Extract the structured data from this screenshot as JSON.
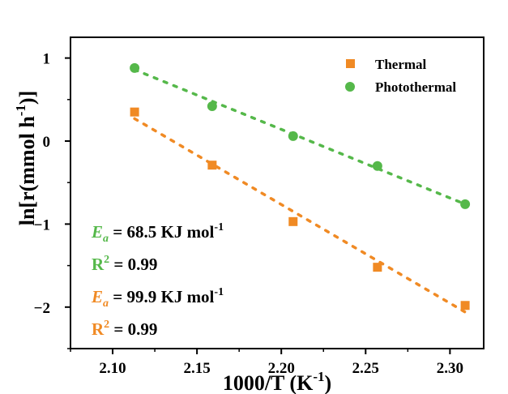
{
  "chart_data": {
    "type": "scatter",
    "xlabel": "1000/T (K",
    "xlabel_sup": "-1",
    "xlabel_close": ")",
    "ylabel": "ln[r(mmol h",
    "ylabel_sup": "-1",
    "ylabel_close": ")]",
    "xlim": [
      2.075,
      2.32
    ],
    "ylim": [
      -2.5,
      1.25
    ],
    "xticks": [
      2.1,
      2.15,
      2.2,
      2.25,
      2.3
    ],
    "xtick_labels": [
      "2.10",
      "2.15",
      "2.20",
      "2.25",
      "2.30"
    ],
    "yticks": [
      1,
      0,
      -1,
      -2
    ],
    "ytick_labels": [
      "1",
      "0",
      "−1",
      "−2"
    ],
    "legend": {
      "placement": "top-right"
    },
    "series": [
      {
        "name": "Thermal",
        "marker": "square",
        "color": "#f08a24",
        "x": [
          2.113,
          2.159,
          2.207,
          2.257,
          2.309
        ],
        "y": [
          0.35,
          -0.29,
          -0.97,
          -1.52,
          -1.98
        ],
        "fit": {
          "x": [
            2.113,
            2.309
          ],
          "y": [
            0.27,
            -2.06
          ]
        }
      },
      {
        "name": "Photothermal",
        "marker": "circle",
        "color": "#55b84a",
        "x": [
          2.113,
          2.159,
          2.207,
          2.257,
          2.309
        ],
        "y": [
          0.88,
          0.42,
          0.06,
          -0.3,
          -0.76
        ],
        "fit": {
          "x": [
            2.113,
            2.309
          ],
          "y": [
            0.86,
            -0.76
          ]
        }
      }
    ],
    "annotations": [
      {
        "name": "photothermal-ea",
        "symbol": "E",
        "sub": "a",
        "text": " = 68.5 KJ mol",
        "sup": "-1",
        "color": "#55b84a"
      },
      {
        "name": "photothermal-r2",
        "symbol": "R",
        "sup": "2",
        "text": " = 0.99",
        "color": "#55b84a"
      },
      {
        "name": "thermal-ea",
        "symbol": "E",
        "sub": "a",
        "text": " = 99.9 KJ mol",
        "sup": "-1",
        "color": "#f08a24"
      },
      {
        "name": "thermal-r2",
        "symbol": "R",
        "sup": "2",
        "text": " = 0.99",
        "color": "#f08a24"
      }
    ]
  }
}
